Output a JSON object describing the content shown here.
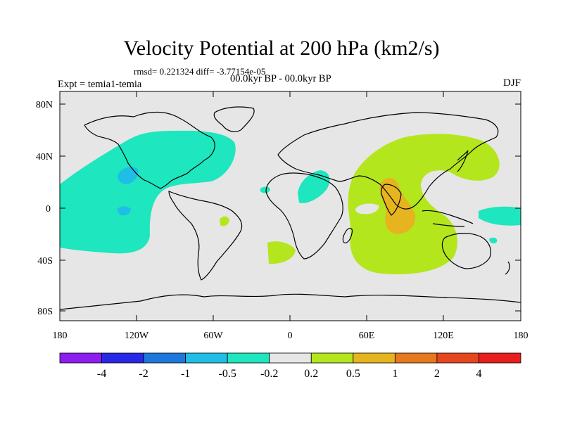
{
  "title": "Velocity Potential at 200 hPa (km2/s)",
  "stats": "rmsd= 0.221324 diff= -3.77154e-05",
  "experiment": "Expt = temia1-temia",
  "period": "00.0kyr BP - 00.0kyr BP",
  "season": "DJF",
  "lat_labels": [
    "80N",
    "40N",
    "0",
    "40S",
    "80S"
  ],
  "lon_labels": [
    "180",
    "120W",
    "60W",
    "0",
    "60E",
    "120E",
    "180"
  ],
  "colorbar": {
    "colors": [
      "#8c1ef0",
      "#2828e6",
      "#1e78dc",
      "#1ebee6",
      "#1ee6be",
      "#e6e6e6",
      "#b4e61e",
      "#e6b41e",
      "#e6781e",
      "#e6461e",
      "#e61e1e"
    ],
    "labels": [
      "-4",
      "-2",
      "-1",
      "-0.5",
      "-0.2",
      "0.2",
      "0.5",
      "1",
      "2",
      "4"
    ]
  },
  "map_background": "#e6e6e6"
}
